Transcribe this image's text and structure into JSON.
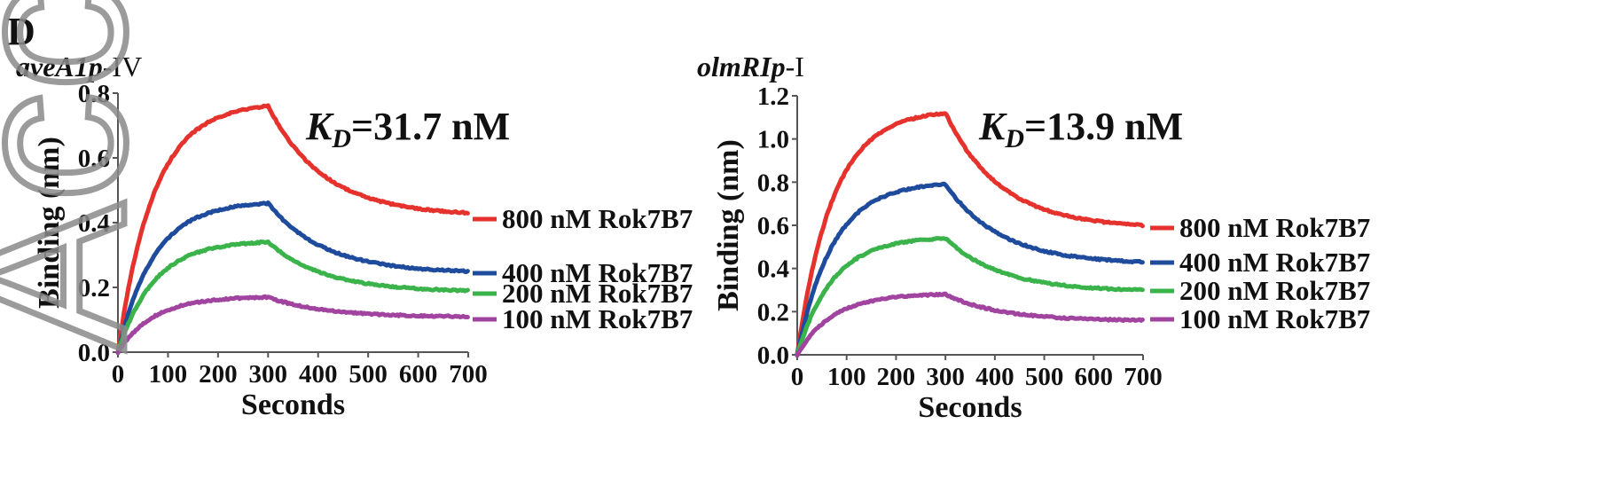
{
  "panel_label": "D",
  "watermark": "Acce",
  "chart_data": [
    {
      "type": "line",
      "title_italic": "aveA1p",
      "title_rest": "-IV",
      "kd_symbol": "K",
      "kd_subscript": "D",
      "kd_value": "=31.7 nM",
      "xlabel": "Seconds",
      "ylabel": "Binding (nm)",
      "xlim": [
        0,
        700
      ],
      "ylim": [
        0,
        0.8
      ],
      "xticks": [
        "0",
        "100",
        "200",
        "300",
        "400",
        "500",
        "600",
        "700"
      ],
      "yticks": [
        "0.0",
        "0.2",
        "0.4",
        "0.6",
        "0.8"
      ],
      "grid": false,
      "legend_position": "right",
      "switch_time": 300,
      "series": [
        {
          "name": "800 nM Rok7B7",
          "color": "#e5322c",
          "plateau": 0.76,
          "end": 0.43
        },
        {
          "name": "400 nM Rok7B7",
          "color": "#1f4b9c",
          "plateau": 0.46,
          "end": 0.25
        },
        {
          "name": "200 nM Rok7B7",
          "color": "#3ab34a",
          "plateau": 0.34,
          "end": 0.19
        },
        {
          "name": "100 nM Rok7B7",
          "color": "#a044a0",
          "plateau": 0.17,
          "end": 0.11
        }
      ]
    },
    {
      "type": "line",
      "title_italic": "olmRIp",
      "title_rest": "-I",
      "kd_symbol": "K",
      "kd_subscript": "D",
      "kd_value": "=13.9 nM",
      "xlabel": "Seconds",
      "ylabel": "Binding (nm)",
      "xlim": [
        0,
        700
      ],
      "ylim": [
        0,
        1.2
      ],
      "xticks": [
        "0",
        "100",
        "200",
        "300",
        "400",
        "500",
        "600",
        "700"
      ],
      "yticks": [
        "0.0",
        "0.2",
        "0.4",
        "0.6",
        "0.8",
        "1.0",
        "1.2"
      ],
      "grid": false,
      "legend_position": "right",
      "switch_time": 300,
      "series": [
        {
          "name": "800 nM Rok7B7",
          "color": "#e5322c",
          "plateau": 1.12,
          "end": 0.6
        },
        {
          "name": "400 nM Rok7B7",
          "color": "#1f4b9c",
          "plateau": 0.79,
          "end": 0.43
        },
        {
          "name": "200 nM Rok7B7",
          "color": "#3ab34a",
          "plateau": 0.54,
          "end": 0.3
        },
        {
          "name": "100 nM Rok7B7",
          "color": "#a044a0",
          "plateau": 0.28,
          "end": 0.16
        }
      ]
    }
  ]
}
